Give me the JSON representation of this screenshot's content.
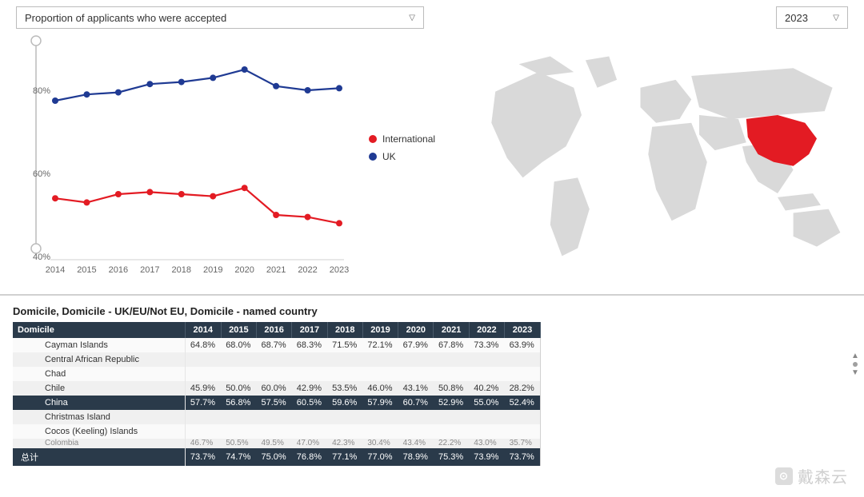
{
  "dropdown_title": "Proportion of applicants who were accepted",
  "year_selected": "2023",
  "legend": {
    "international": "International",
    "uk": "UK"
  },
  "colors": {
    "international": "#e31b23",
    "uk": "#1f3a93",
    "grid": "#d0d0d0",
    "scrubber": "#bcbcbc",
    "map_land": "#d9d9d9",
    "map_highlight": "#e31b23",
    "table_header_bg": "#2a3a4a",
    "table_header_fg": "#ffffff"
  },
  "chart": {
    "type": "line",
    "x_labels": [
      "2014",
      "2015",
      "2016",
      "2017",
      "2018",
      "2019",
      "2020",
      "2021",
      "2022",
      "2023"
    ],
    "y_ticks": [
      40,
      60,
      80
    ],
    "y_min": 40,
    "y_max": 90,
    "series": {
      "uk": [
        77.5,
        79.0,
        79.5,
        81.5,
        82.0,
        83.0,
        85.0,
        81.0,
        80.0,
        80.5
      ],
      "international": [
        54.0,
        53.0,
        55.0,
        55.5,
        55.0,
        54.5,
        56.5,
        50.0,
        49.5,
        48.0
      ]
    }
  },
  "map": {
    "highlighted_region": "China"
  },
  "table": {
    "caption": "Domicile, Domicile - UK/EU/Not EU, Domicile - named country",
    "dom_header": "Domicile",
    "years": [
      "2014",
      "2015",
      "2016",
      "2017",
      "2018",
      "2019",
      "2020",
      "2021",
      "2022",
      "2023"
    ],
    "rows": [
      {
        "name": "Cayman Islands",
        "vals": [
          "64.8%",
          "68.0%",
          "68.7%",
          "68.3%",
          "71.5%",
          "72.1%",
          "67.9%",
          "67.8%",
          "73.3%",
          "63.9%"
        ]
      },
      {
        "name": "Central African Republic",
        "vals": [
          "",
          "",
          "",
          "",
          "",
          "",
          "",
          "",
          "",
          ""
        ]
      },
      {
        "name": "Chad",
        "vals": [
          "",
          "",
          "",
          "",
          "",
          "",
          "",
          "",
          "",
          ""
        ]
      },
      {
        "name": "Chile",
        "vals": [
          "45.9%",
          "50.0%",
          "60.0%",
          "42.9%",
          "53.5%",
          "46.0%",
          "43.1%",
          "50.8%",
          "40.2%",
          "28.2%"
        ]
      },
      {
        "name": "China",
        "selected": true,
        "vals": [
          "57.7%",
          "56.8%",
          "57.5%",
          "60.5%",
          "59.6%",
          "57.9%",
          "60.7%",
          "52.9%",
          "55.0%",
          "52.4%"
        ]
      },
      {
        "name": "Christmas Island",
        "vals": [
          "",
          "",
          "",
          "",
          "",
          "",
          "",
          "",
          "",
          ""
        ]
      },
      {
        "name": "Cocos (Keeling) Islands",
        "vals": [
          "",
          "",
          "",
          "",
          "",
          "",
          "",
          "",
          "",
          ""
        ]
      },
      {
        "name": "Colombia",
        "clipped": true,
        "vals": [
          "46.7%",
          "50.5%",
          "49.5%",
          "47.0%",
          "42.3%",
          "30.4%",
          "43.4%",
          "22.2%",
          "43.0%",
          "35.7%"
        ]
      }
    ],
    "total_label": "总计",
    "total_vals": [
      "73.7%",
      "74.7%",
      "75.0%",
      "76.8%",
      "77.1%",
      "77.0%",
      "78.9%",
      "75.3%",
      "73.9%",
      "73.7%"
    ]
  },
  "watermark_text": "戴森云"
}
